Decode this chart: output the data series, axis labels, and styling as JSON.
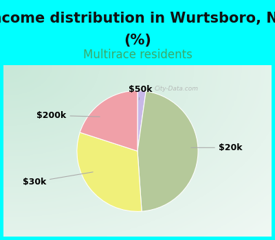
{
  "title_line1": "Income distribution in Wurtsboro, NY",
  "title_line2": "(%)",
  "subtitle": "Multirace residents",
  "slices": [
    {
      "label": "$20k",
      "value": 42,
      "color": "#b5c99a"
    },
    {
      "label": "$30k",
      "value": 28,
      "color": "#f0f07a"
    },
    {
      "label": "$200k",
      "value": 18,
      "color": "#f0a0a8"
    },
    {
      "label": "$50k",
      "value": 2,
      "color": "#c8b8e8"
    }
  ],
  "bg_cyan": "#00ffff",
  "bg_chart_topleft": "#c8e8d8",
  "bg_chart_center": "#f0f8f0",
  "title_fontsize": 15,
  "subtitle_fontsize": 12,
  "subtitle_color": "#3aaa6a",
  "label_fontsize": 9,
  "watermark": "City-Data.com",
  "cyan_border": 5
}
